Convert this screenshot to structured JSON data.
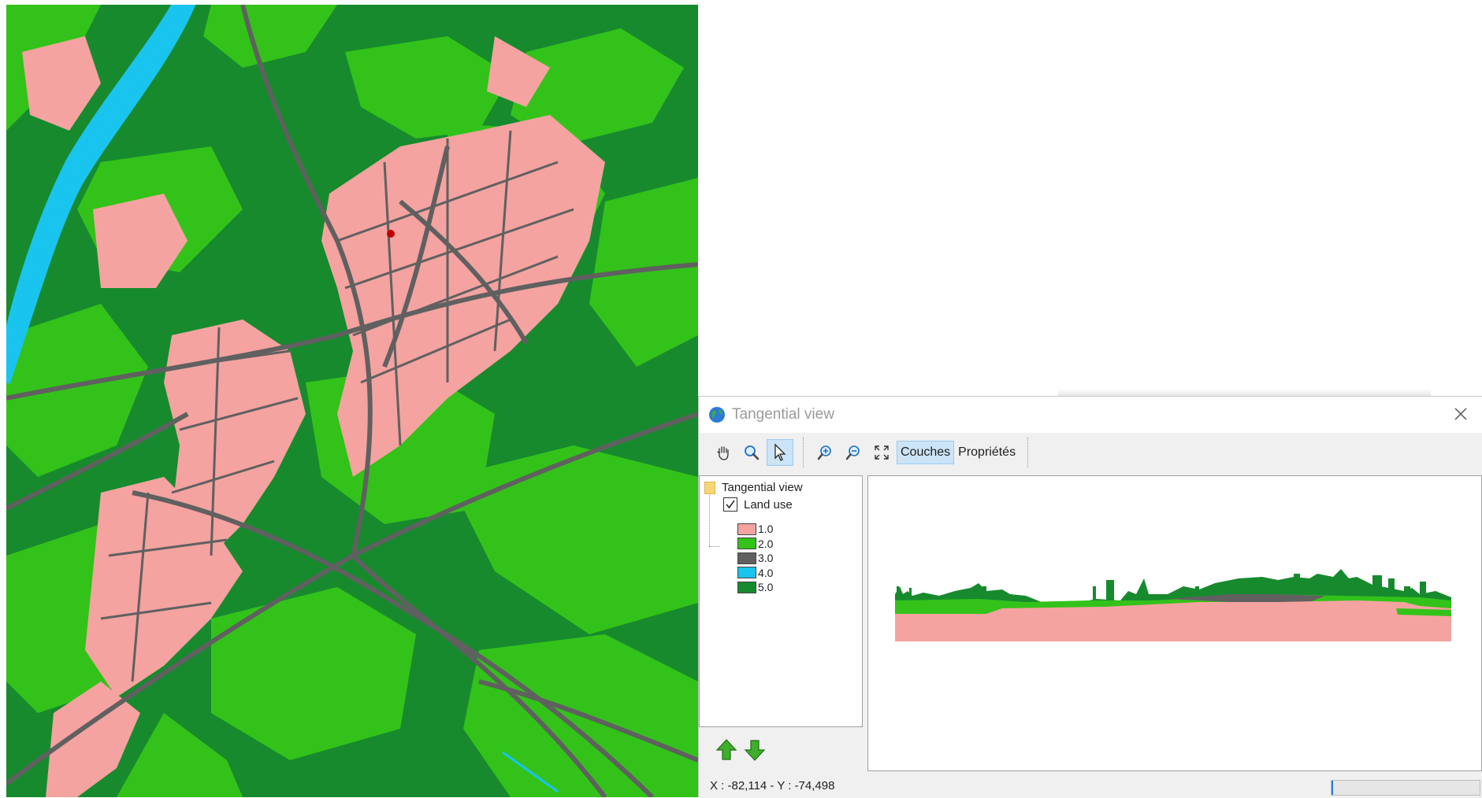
{
  "window": {
    "title": "Tangential view"
  },
  "toolbar": {
    "pan_tool": "hand-pan",
    "zoom_tool": "magnifier",
    "select_tool": "pointer",
    "zoom_in": "zoom-in",
    "zoom_out": "zoom-out",
    "full_extent": "full-extent",
    "couches_label": "Couches",
    "proprietes_label": "Propriétés"
  },
  "layers": {
    "root_label": "Tangential view",
    "layer_label": "Land use",
    "layer_checked": true,
    "legend": [
      {
        "label": "1.0",
        "color": "#f4a3a0"
      },
      {
        "label": "2.0",
        "color": "#33c21a"
      },
      {
        "label": "3.0",
        "color": "#606060"
      },
      {
        "label": "4.0",
        "color": "#19c4ee"
      },
      {
        "label": "5.0",
        "color": "#178a2e"
      }
    ]
  },
  "status": {
    "coordinates": "X : -82,114 - Y : -74,498",
    "progress_fraction": 0.01
  },
  "colors": {
    "residential": "#f4a3a0",
    "grass": "#33c21a",
    "road": "#606060",
    "water": "#19c4ee",
    "forest": "#178a2e",
    "accent_selected": "#cce4f7"
  }
}
